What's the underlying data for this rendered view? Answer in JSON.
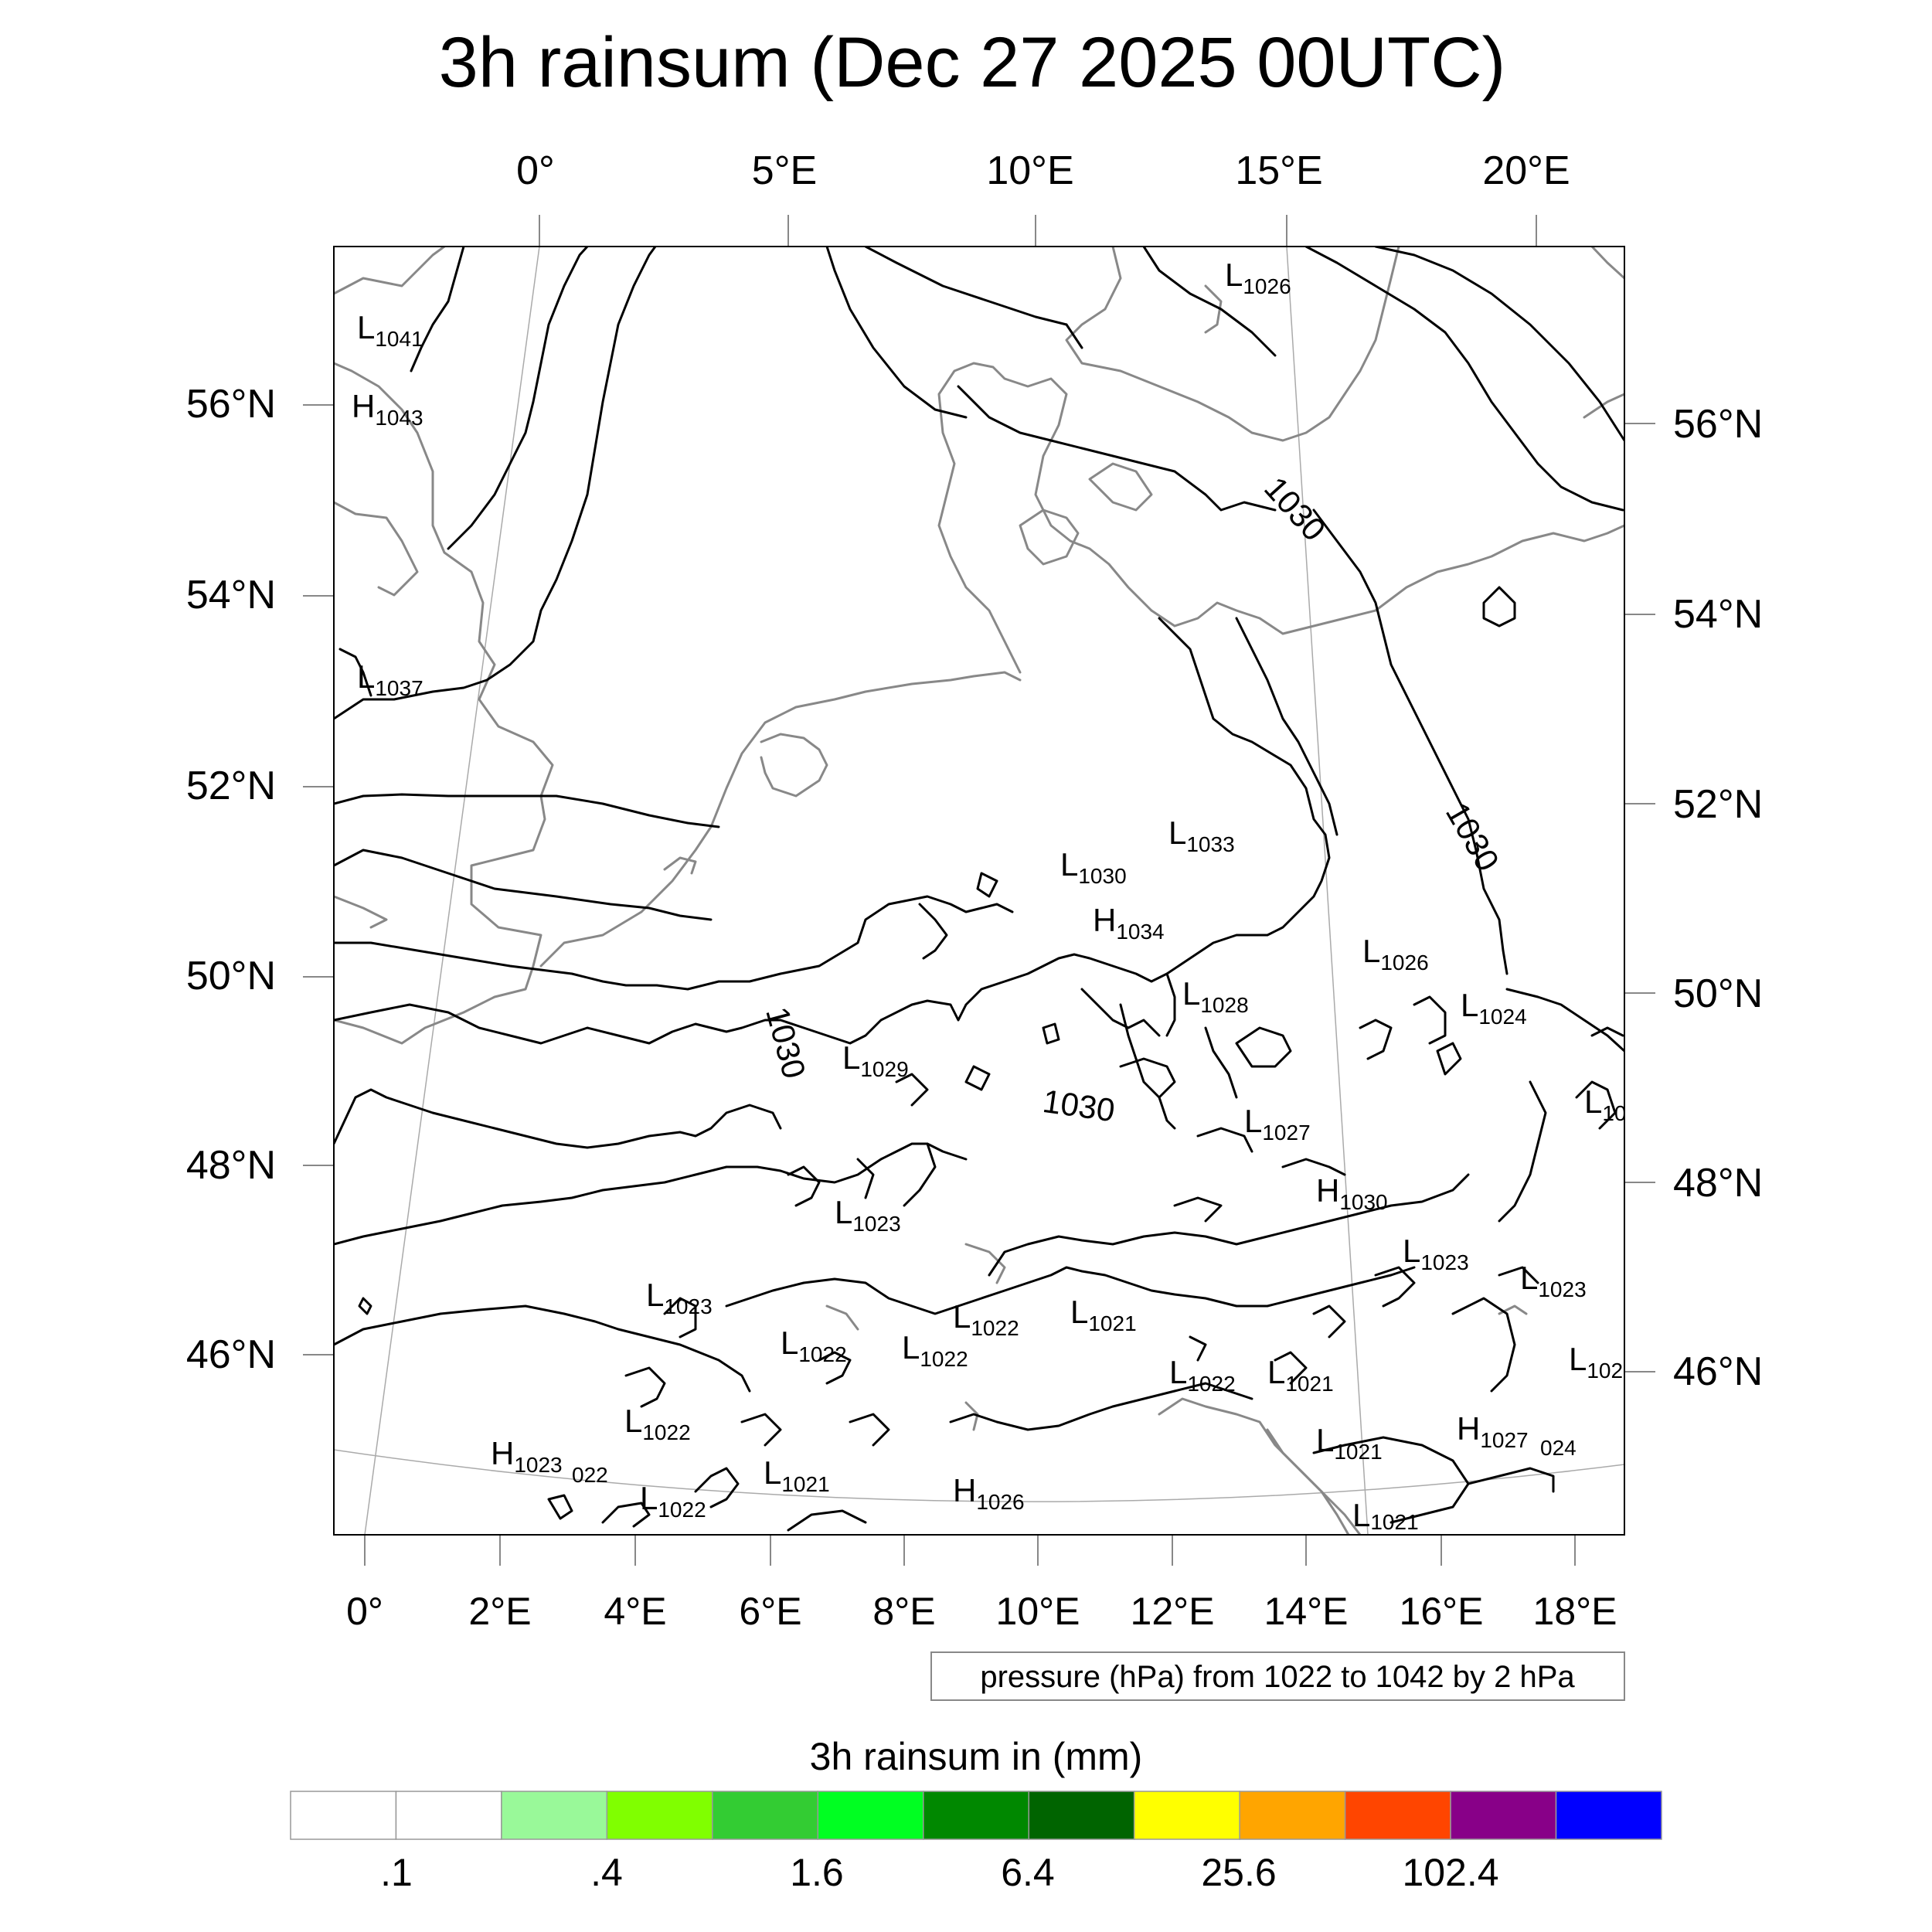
{
  "title": "3h rainsum (Dec 27 2025 00UTC)",
  "top_lon_labels": [
    "0°",
    "5°E",
    "10°E",
    "15°E",
    "20°E"
  ],
  "left_lat_labels": [
    "56°N",
    "54°N",
    "52°N",
    "50°N",
    "48°N",
    "46°N"
  ],
  "right_lat_labels": [
    "56°N",
    "54°N",
    "52°N",
    "50°N",
    "48°N",
    "46°N"
  ],
  "bottom_lon_labels": [
    "0°",
    "2°E",
    "4°E",
    "6°E",
    "8°E",
    "10°E",
    "12°E",
    "14°E",
    "16°E",
    "18°E"
  ],
  "isobar_labels": [
    "1030",
    "1030",
    "1030",
    "1030"
  ],
  "pressure_centers": [
    {
      "kind": "L",
      "value": "1026"
    },
    {
      "kind": "L",
      "value": "1041"
    },
    {
      "kind": "H",
      "value": "1043"
    },
    {
      "kind": "L",
      "value": "1037"
    },
    {
      "kind": "L",
      "value": "1033"
    },
    {
      "kind": "L",
      "value": "1030"
    },
    {
      "kind": "H",
      "value": "1034"
    },
    {
      "kind": "L",
      "value": "1026"
    },
    {
      "kind": "L",
      "value": "1024"
    },
    {
      "kind": "L",
      "value": "1028"
    },
    {
      "kind": "L",
      "value": "1029"
    },
    {
      "kind": "L",
      "value": "1027"
    },
    {
      "kind": "L",
      "value": "10"
    },
    {
      "kind": "H",
      "value": "1030"
    },
    {
      "kind": "L",
      "value": "1023"
    },
    {
      "kind": "L",
      "value": "1023"
    },
    {
      "kind": "L",
      "value": "1023"
    },
    {
      "kind": "L",
      "value": "1023"
    },
    {
      "kind": "L",
      "value": "1022"
    },
    {
      "kind": "L",
      "value": "1022"
    },
    {
      "kind": "L",
      "value": "1022"
    },
    {
      "kind": "L",
      "value": "1021"
    },
    {
      "kind": "L",
      "value": "1022"
    },
    {
      "kind": "L",
      "value": "1021"
    },
    {
      "kind": "L",
      "value": "102"
    },
    {
      "kind": "L",
      "value": "1022"
    },
    {
      "kind": "H",
      "value": "1023"
    },
    {
      "kind": "",
      "value": "022"
    },
    {
      "kind": "L",
      "value": "1022"
    },
    {
      "kind": "L",
      "value": "1021"
    },
    {
      "kind": "H",
      "value": "1026"
    },
    {
      "kind": "L",
      "value": "1021"
    },
    {
      "kind": "H",
      "value": "1027"
    },
    {
      "kind": "",
      "value": "024"
    },
    {
      "kind": "L",
      "value": "1021"
    }
  ],
  "info_box": "pressure (hPa) from 1022 to 1042 by 2 hPa",
  "colorbar": {
    "title": "3h rainsum in (mm)",
    "colors": [
      "#ffffff",
      "#ffffff",
      "#99f999",
      "#80ff00",
      "#33cc33",
      "#00ff22",
      "#008800",
      "#006400",
      "#ffff00",
      "#ffa500",
      "#ff4500",
      "#880088",
      "#0000ff"
    ],
    "tick_labels": [
      ".1",
      ".4",
      "1.6",
      "6.4",
      "25.6",
      "102.4"
    ]
  },
  "colors": {
    "isobar": "#000000",
    "coastline": "#888888",
    "graticule": "#aaaaaa"
  }
}
